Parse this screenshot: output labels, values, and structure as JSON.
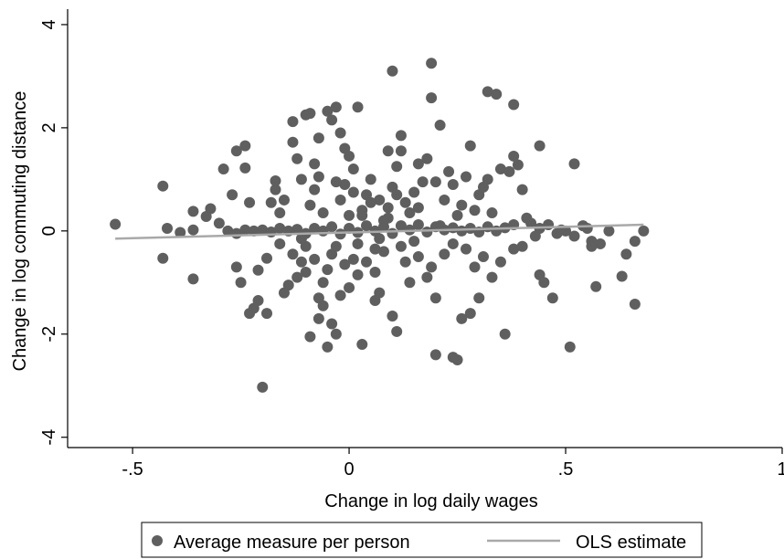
{
  "chart_data": {
    "type": "scatter",
    "title": "",
    "xlabel": "Change in log daily wages",
    "ylabel": "Change in log commuting distance",
    "xlim": [
      -0.65,
      1.0
    ],
    "ylim": [
      -4.2,
      4.3
    ],
    "x_ticks": [
      {
        "value": -0.5,
        "label": "-.5"
      },
      {
        "value": 0,
        "label": "0"
      },
      {
        "value": 0.5,
        "label": ".5"
      },
      {
        "value": 1,
        "label": "1"
      }
    ],
    "y_ticks": [
      {
        "value": -4,
        "label": "-4"
      },
      {
        "value": -2,
        "label": "-2"
      },
      {
        "value": 0,
        "label": "0"
      },
      {
        "value": 2,
        "label": "2"
      },
      {
        "value": 4,
        "label": "4"
      }
    ],
    "grid": false,
    "legend": {
      "position": "bottom",
      "entries": [
        "Average measure per person",
        "OLS estimate"
      ]
    },
    "colors": {
      "points": "#5f5f5f",
      "fit_line": "#a9a9a9",
      "axis": "#000000"
    },
    "series": [
      {
        "name": "Average measure per person",
        "kind": "scatter",
        "points": [
          [
            -0.54,
            0.13
          ],
          [
            -0.43,
            0.87
          ],
          [
            -0.43,
            -0.53
          ],
          [
            -0.42,
            0.05
          ],
          [
            -0.39,
            -0.03
          ],
          [
            -0.36,
            -0.93
          ],
          [
            -0.36,
            0.02
          ],
          [
            -0.36,
            0.38
          ],
          [
            -0.32,
            0.43
          ],
          [
            -0.29,
            1.2
          ],
          [
            -0.26,
            1.55
          ],
          [
            -0.24,
            1.65
          ],
          [
            -0.24,
            1.22
          ],
          [
            -0.23,
            0.55
          ],
          [
            -0.23,
            -1.6
          ],
          [
            -0.22,
            -1.5
          ],
          [
            -0.21,
            -1.35
          ],
          [
            -0.21,
            -0.76
          ],
          [
            -0.2,
            -3.03
          ],
          [
            -0.19,
            -1.6
          ],
          [
            -0.19,
            -0.53
          ],
          [
            -0.17,
            0.8
          ],
          [
            -0.17,
            0.97
          ],
          [
            -0.16,
            0.35
          ],
          [
            -0.16,
            -0.25
          ],
          [
            -0.26,
            -0.7
          ],
          [
            -0.25,
            -1.0
          ],
          [
            -0.27,
            0.7
          ],
          [
            -0.3,
            0.15
          ],
          [
            -0.33,
            0.28
          ],
          [
            -0.13,
            2.12
          ],
          [
            -0.13,
            1.72
          ],
          [
            -0.12,
            1.4
          ],
          [
            -0.11,
            1.0
          ],
          [
            -0.1,
            2.25
          ],
          [
            -0.09,
            2.28
          ],
          [
            -0.08,
            1.3
          ],
          [
            -0.07,
            1.8
          ],
          [
            -0.05,
            2.32
          ],
          [
            -0.04,
            2.15
          ],
          [
            -0.03,
            2.4
          ],
          [
            -0.02,
            1.9
          ],
          [
            -0.01,
            1.6
          ],
          [
            0.0,
            1.45
          ],
          [
            0.01,
            1.2
          ],
          [
            0.02,
            2.4
          ],
          [
            -0.05,
            -2.25
          ],
          [
            -0.04,
            -1.8
          ],
          [
            -0.07,
            -1.7
          ],
          [
            -0.09,
            -2.05
          ],
          [
            -0.03,
            -2.0
          ],
          [
            0.03,
            -2.2
          ],
          [
            -0.14,
            -1.05
          ],
          [
            -0.15,
            -1.2
          ],
          [
            -0.12,
            -0.9
          ],
          [
            -0.11,
            -0.6
          ],
          [
            -0.1,
            -0.3
          ],
          [
            -0.09,
            0.5
          ],
          [
            -0.08,
            0.8
          ],
          [
            -0.07,
            -1.3
          ],
          [
            -0.06,
            -1.45
          ],
          [
            -0.05,
            -0.75
          ],
          [
            -0.04,
            -0.45
          ],
          [
            -0.02,
            0.6
          ],
          [
            -0.01,
            0.9
          ],
          [
            0.0,
            -1.1
          ],
          [
            0.01,
            -0.55
          ],
          [
            0.02,
            -0.25
          ],
          [
            0.03,
            0.3
          ],
          [
            0.04,
            0.7
          ],
          [
            0.05,
            1.0
          ],
          [
            0.06,
            -0.8
          ],
          [
            0.07,
            -1.2
          ],
          [
            0.08,
            -0.4
          ],
          [
            0.09,
            0.25
          ],
          [
            0.1,
            0.85
          ],
          [
            0.11,
            1.25
          ],
          [
            0.12,
            1.55
          ],
          [
            0.13,
            -0.6
          ],
          [
            0.14,
            -1.0
          ],
          [
            0.15,
            -0.2
          ],
          [
            0.16,
            0.45
          ],
          [
            0.17,
            0.95
          ],
          [
            0.18,
            1.4
          ],
          [
            0.19,
            -0.7
          ],
          [
            0.2,
            -1.3
          ],
          [
            0.21,
            0.1
          ],
          [
            0.22,
            0.6
          ],
          [
            0.1,
            3.1
          ],
          [
            0.19,
            3.25
          ],
          [
            0.19,
            2.58
          ],
          [
            0.21,
            2.05
          ],
          [
            0.32,
            2.7
          ],
          [
            0.34,
            2.65
          ],
          [
            0.38,
            2.45
          ],
          [
            0.28,
            1.65
          ],
          [
            0.32,
            1.0
          ],
          [
            0.35,
            1.2
          ],
          [
            0.37,
            1.15
          ],
          [
            0.39,
            1.28
          ],
          [
            0.38,
            1.45
          ],
          [
            0.44,
            1.65
          ],
          [
            0.52,
            1.3
          ],
          [
            0.27,
            1.05
          ],
          [
            0.26,
            0.5
          ],
          [
            0.24,
            0.9
          ],
          [
            0.3,
            0.7
          ],
          [
            0.29,
            0.4
          ],
          [
            0.31,
            0.85
          ],
          [
            0.41,
            0.25
          ],
          [
            0.4,
            0.8
          ],
          [
            0.42,
            0.15
          ],
          [
            0.44,
            0.05
          ],
          [
            0.46,
            0.12
          ],
          [
            0.48,
            -0.05
          ],
          [
            0.5,
            0.0
          ],
          [
            0.52,
            -0.1
          ],
          [
            0.54,
            0.1
          ],
          [
            0.56,
            -0.2
          ],
          [
            0.56,
            -0.3
          ],
          [
            0.58,
            -0.25
          ],
          [
            0.6,
            0.0
          ],
          [
            0.57,
            -1.08
          ],
          [
            0.44,
            -0.85
          ],
          [
            0.45,
            -1.0
          ],
          [
            0.47,
            -1.3
          ],
          [
            0.51,
            -2.25
          ],
          [
            0.36,
            -2.0
          ],
          [
            0.26,
            -1.7
          ],
          [
            0.25,
            -2.5
          ],
          [
            0.24,
            -2.45
          ],
          [
            0.2,
            -2.4
          ],
          [
            0.11,
            -1.95
          ],
          [
            0.1,
            -1.65
          ],
          [
            0.28,
            -1.6
          ],
          [
            0.3,
            -1.3
          ],
          [
            0.33,
            -0.9
          ],
          [
            0.35,
            -0.6
          ],
          [
            0.38,
            -0.35
          ],
          [
            0.4,
            -0.3
          ],
          [
            0.43,
            -0.1
          ],
          [
            0.63,
            -0.88
          ],
          [
            0.64,
            -0.45
          ],
          [
            0.66,
            -0.2
          ],
          [
            0.66,
            -1.42
          ],
          [
            0.68,
            0.0
          ],
          [
            0.55,
            0.05
          ],
          [
            0.49,
            0.02
          ],
          [
            -0.28,
            0.0
          ],
          [
            -0.26,
            -0.05
          ],
          [
            -0.24,
            0.02
          ],
          [
            -0.22,
            0.0
          ],
          [
            -0.2,
            0.02
          ],
          [
            -0.18,
            -0.02
          ],
          [
            -0.16,
            0.05
          ],
          [
            -0.14,
            0.0
          ],
          [
            -0.12,
            0.03
          ],
          [
            -0.1,
            -0.05
          ],
          [
            -0.08,
            0.05
          ],
          [
            -0.06,
            0.0
          ],
          [
            -0.04,
            0.08
          ],
          [
            -0.02,
            -0.06
          ],
          [
            0.0,
            0.05
          ],
          [
            0.02,
            -0.03
          ],
          [
            0.04,
            0.1
          ],
          [
            0.06,
            0.0
          ],
          [
            0.08,
            0.08
          ],
          [
            0.1,
            -0.05
          ],
          [
            0.12,
            0.1
          ],
          [
            0.14,
            0.02
          ],
          [
            0.16,
            0.12
          ],
          [
            0.18,
            -0.02
          ],
          [
            0.2,
            0.08
          ],
          [
            0.22,
            0.02
          ],
          [
            0.24,
            0.06
          ],
          [
            0.26,
            0.0
          ],
          [
            0.28,
            0.05
          ],
          [
            0.3,
            -0.02
          ],
          [
            0.32,
            0.08
          ],
          [
            0.34,
            0.0
          ],
          [
            0.36,
            0.06
          ],
          [
            0.38,
            0.12
          ],
          [
            0.03,
            0.4
          ],
          [
            0.05,
            0.55
          ],
          [
            0.07,
            0.6
          ],
          [
            0.08,
            0.2
          ],
          [
            0.09,
            0.45
          ],
          [
            0.11,
            0.7
          ],
          [
            0.06,
            -0.35
          ],
          [
            0.04,
            -0.6
          ],
          [
            0.02,
            -0.85
          ],
          [
            -0.01,
            -0.65
          ],
          [
            -0.03,
            -0.3
          ],
          [
            0.12,
            -0.3
          ],
          [
            0.14,
            0.35
          ],
          [
            0.13,
            0.55
          ],
          [
            0.15,
            0.75
          ],
          [
            0.0,
            0.3
          ],
          [
            -0.06,
            0.35
          ],
          [
            -0.08,
            -0.55
          ],
          [
            -0.1,
            -0.8
          ],
          [
            0.16,
            -0.5
          ],
          [
            0.18,
            -0.9
          ],
          [
            0.22,
            -0.45
          ],
          [
            0.24,
            -0.25
          ],
          [
            0.25,
            0.3
          ],
          [
            0.27,
            -0.35
          ],
          [
            0.29,
            -0.7
          ],
          [
            0.31,
            -0.5
          ],
          [
            0.33,
            0.35
          ],
          [
            -0.18,
            0.55
          ],
          [
            -0.15,
            0.6
          ],
          [
            -0.13,
            -0.45
          ],
          [
            -0.11,
            -0.15
          ],
          [
            -0.06,
            -1.0
          ],
          [
            -0.02,
            -1.25
          ],
          [
            0.07,
            -0.15
          ],
          [
            0.09,
            1.55
          ],
          [
            0.12,
            1.85
          ],
          [
            0.06,
            -1.35
          ],
          [
            -0.03,
            0.95
          ],
          [
            0.01,
            0.75
          ],
          [
            -0.07,
            1.05
          ],
          [
            0.23,
            1.15
          ],
          [
            0.16,
            1.3
          ],
          [
            0.2,
            0.95
          ]
        ]
      },
      {
        "name": "OLS estimate",
        "kind": "line",
        "points": [
          [
            -0.54,
            -0.15
          ],
          [
            0.68,
            0.12
          ]
        ]
      }
    ]
  }
}
